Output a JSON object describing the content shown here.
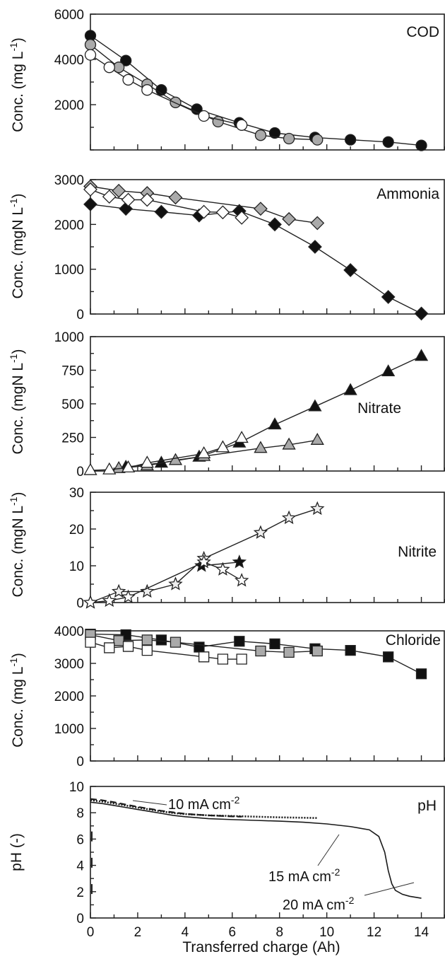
{
  "chart_data": [
    {
      "type": "line",
      "panel_label": "COD",
      "ylabel": "Conc. (mg L",
      "ylabel_sup": "-1",
      "ylabel_tail": ")",
      "xlim": [
        0,
        15
      ],
      "ylim": [
        0,
        6000
      ],
      "yticks": [
        2000,
        4000,
        6000
      ],
      "marker": "circle",
      "series": [
        {
          "fill": "#111111",
          "x": [
            0,
            1.5,
            3,
            4.5,
            6.3,
            7.8,
            9.5,
            11,
            12.6,
            14
          ],
          "y": [
            5050,
            3950,
            2650,
            1800,
            1200,
            750,
            550,
            450,
            350,
            200
          ]
        },
        {
          "fill": "#aaaaaa",
          "x": [
            0,
            1.2,
            2.4,
            3.6,
            5.4,
            7.2,
            8.4,
            9.6
          ],
          "y": [
            4650,
            3650,
            2900,
            2100,
            1250,
            650,
            500,
            450
          ]
        },
        {
          "fill": "#ffffff",
          "x": [
            0,
            0.8,
            1.6,
            2.4,
            4.8,
            6.4
          ],
          "y": [
            4200,
            3650,
            3100,
            2650,
            1500,
            1100
          ]
        }
      ]
    },
    {
      "type": "line",
      "panel_label": "Ammonia",
      "ylabel": "Conc. (mgN L",
      "ylabel_sup": "-1",
      "ylabel_tail": ")",
      "xlim": [
        0,
        15
      ],
      "ylim": [
        0,
        3000
      ],
      "yticks": [
        0,
        1000,
        2000,
        3000
      ],
      "marker": "diamond",
      "series": [
        {
          "fill": "#111111",
          "x": [
            0,
            1.5,
            3,
            4.6,
            6.3,
            7.8,
            9.5,
            11,
            12.6,
            14
          ],
          "y": [
            2450,
            2350,
            2280,
            2200,
            2300,
            2000,
            1500,
            980,
            380,
            10
          ]
        },
        {
          "fill": "#aaaaaa",
          "x": [
            0,
            1.2,
            2.4,
            3.6,
            7.2,
            8.4,
            9.6
          ],
          "y": [
            2850,
            2750,
            2700,
            2600,
            2350,
            2120,
            2030
          ]
        },
        {
          "fill": "#ffffff",
          "x": [
            0,
            0.8,
            1.6,
            2.4,
            4.8,
            5.6,
            6.4
          ],
          "y": [
            2780,
            2620,
            2550,
            2550,
            2280,
            2270,
            2150
          ]
        }
      ]
    },
    {
      "type": "line",
      "panel_label": "Nitrate",
      "ylabel": "Conc. (mgN L",
      "ylabel_sup": "-1",
      "ylabel_tail": ")",
      "xlim": [
        0,
        15
      ],
      "ylim": [
        0,
        1000
      ],
      "yticks": [
        0,
        250,
        500,
        750,
        1000
      ],
      "marker": "triangle",
      "series": [
        {
          "fill": "#111111",
          "x": [
            1.5,
            3,
            4.6,
            6.3,
            7.8,
            9.5,
            11,
            12.6,
            14
          ],
          "y": [
            30,
            60,
            105,
            210,
            345,
            480,
            600,
            740,
            855
          ]
        },
        {
          "fill": "#aaaaaa",
          "x": [
            1.2,
            2.4,
            3.6,
            4.8,
            7.2,
            8.4,
            9.6
          ],
          "y": [
            20,
            40,
            80,
            110,
            170,
            195,
            230
          ]
        },
        {
          "fill": "#ffffff",
          "x": [
            0,
            0.8,
            1.6,
            2.4,
            4.8,
            5.6,
            6.4
          ],
          "y": [
            5,
            10,
            25,
            60,
            130,
            175,
            245
          ]
        }
      ]
    },
    {
      "type": "line",
      "panel_label": "Nitrite",
      "ylabel": "Conc. (mgN L",
      "ylabel_sup": "-1",
      "ylabel_tail": ")",
      "xlim": [
        0,
        15
      ],
      "ylim": [
        0,
        30
      ],
      "yticks": [
        0,
        10,
        20,
        30
      ],
      "marker": "star",
      "series": [
        {
          "fill": "#111111",
          "x": [
            4.7,
            6.3
          ],
          "y": [
            10,
            11
          ]
        },
        {
          "fill": "#eeeeee",
          "x": [
            0,
            1.2,
            2.4,
            3.6,
            4.8,
            7.2,
            8.4,
            9.6
          ],
          "y": [
            0,
            3,
            3,
            5,
            12,
            19,
            23,
            25.5
          ]
        },
        {
          "fill": "#ffffff",
          "x": [
            0,
            0.8,
            1.6,
            4.8,
            5.6,
            6.4
          ],
          "y": [
            0,
            0.5,
            1.5,
            11,
            9,
            6
          ]
        }
      ]
    },
    {
      "type": "line",
      "panel_label": "Chloride",
      "ylabel": "Conc. (mg L",
      "ylabel_sup": "-1",
      "ylabel_tail": ")",
      "xlim": [
        0,
        15
      ],
      "ylim": [
        0,
        4000
      ],
      "yticks": [
        0,
        1000,
        2000,
        3000,
        4000
      ],
      "marker": "square",
      "series": [
        {
          "fill": "#111111",
          "x": [
            0,
            1.5,
            3,
            4.6,
            6.3,
            7.8,
            9.5,
            11,
            12.6,
            14
          ],
          "y": [
            3900,
            3880,
            3720,
            3500,
            3680,
            3600,
            3450,
            3400,
            3200,
            2680
          ]
        },
        {
          "fill": "#aaaaaa",
          "x": [
            0,
            1.2,
            2.4,
            3.6,
            7.2,
            8.4,
            9.6
          ],
          "y": [
            3880,
            3700,
            3720,
            3650,
            3380,
            3340,
            3380
          ]
        },
        {
          "fill": "#ffffff",
          "x": [
            0,
            0.8,
            1.6,
            2.4,
            4.8,
            5.6,
            6.4
          ],
          "y": [
            3650,
            3480,
            3520,
            3400,
            3200,
            3130,
            3130
          ]
        }
      ]
    },
    {
      "type": "line",
      "panel_label": "pH",
      "ylabel": "pH (-)",
      "xlim": [
        0,
        15
      ],
      "ylim": [
        0,
        10
      ],
      "yticks": [
        0,
        2,
        4,
        6,
        8,
        10
      ],
      "xticks": [
        0,
        2,
        4,
        6,
        8,
        10,
        12,
        14
      ],
      "xlabel": "Transferred charge (Ah)",
      "series": [
        {
          "name": "10 mA cm",
          "name_sup": "-2",
          "style": "dashed",
          "x": [
            0,
            0.5,
            1,
            1.5,
            2,
            2.5,
            3,
            3.5,
            4,
            4.5,
            5,
            5.5,
            6,
            6.4
          ],
          "y": [
            9.05,
            8.95,
            8.8,
            8.62,
            8.45,
            8.3,
            8.15,
            8.03,
            7.92,
            7.85,
            7.8,
            7.76,
            7.72,
            7.7
          ]
        },
        {
          "name": "15 mA cm",
          "name_sup": "-2",
          "style": "dotted",
          "x": [
            0,
            0.5,
            1,
            1.5,
            2,
            2.5,
            3,
            3.5,
            4,
            5,
            6,
            7,
            8,
            9,
            9.6
          ],
          "y": [
            8.95,
            8.85,
            8.7,
            8.55,
            8.4,
            8.25,
            8.1,
            7.98,
            7.9,
            7.8,
            7.75,
            7.7,
            7.65,
            7.62,
            7.6
          ]
        },
        {
          "name": "20 mA cm",
          "name_sup": "-2",
          "style": "solid",
          "x": [
            0,
            0.5,
            1,
            1.5,
            2,
            2.5,
            3,
            3.5,
            4,
            5,
            6,
            7,
            8,
            9,
            10,
            11,
            11.8,
            12.2,
            12.45,
            12.6,
            12.75,
            12.9,
            13.2,
            13.5,
            14
          ],
          "y": [
            8.8,
            8.7,
            8.55,
            8.4,
            8.25,
            8.1,
            7.95,
            7.8,
            7.7,
            7.55,
            7.48,
            7.42,
            7.36,
            7.28,
            7.15,
            6.95,
            6.7,
            6.2,
            5.0,
            3.6,
            2.6,
            2.1,
            1.8,
            1.65,
            1.5
          ]
        }
      ]
    }
  ]
}
